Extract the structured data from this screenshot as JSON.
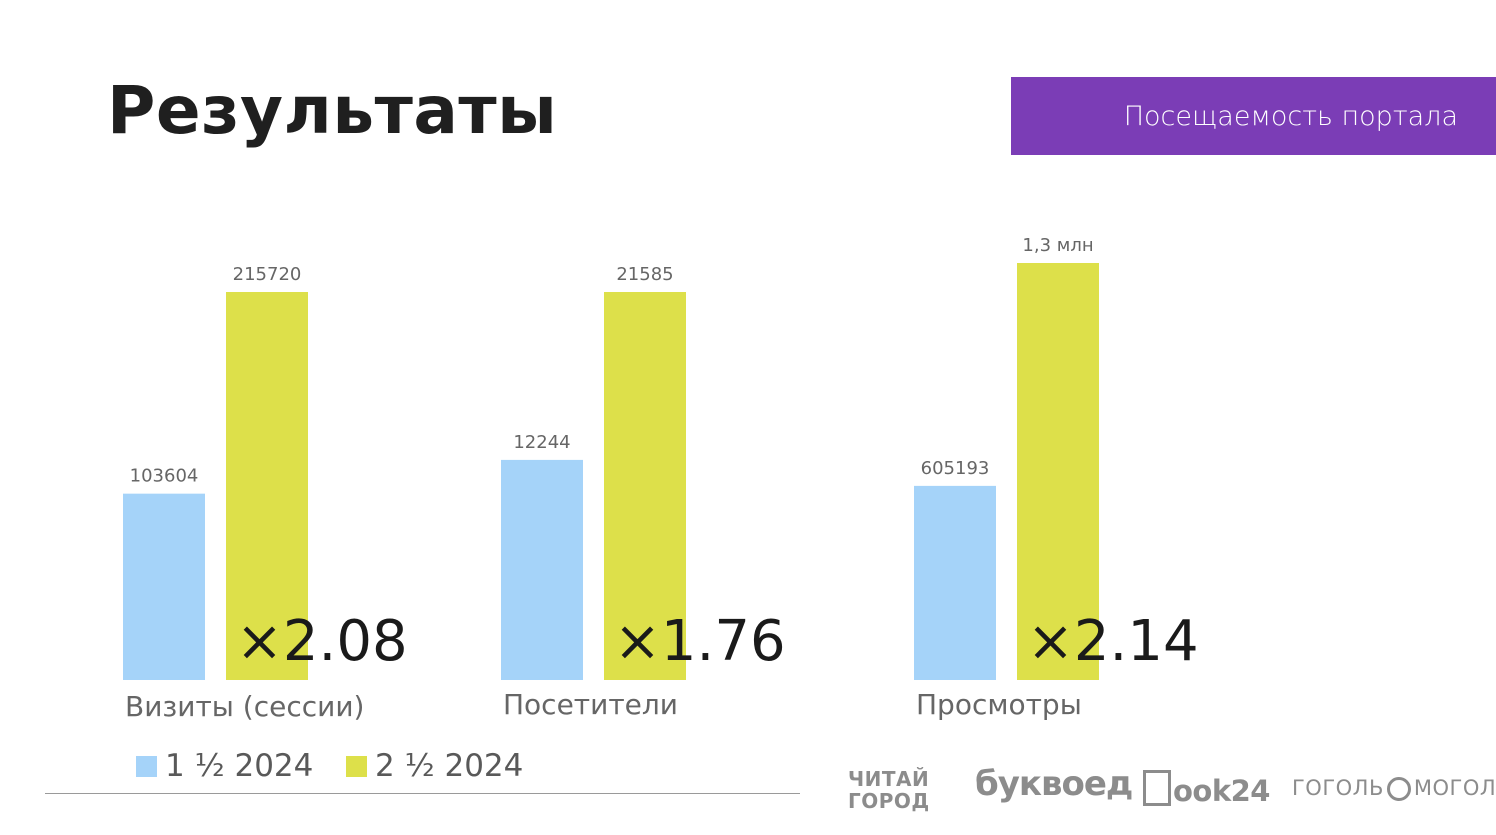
{
  "page": {
    "title": "Результаты",
    "tag": "Посещаемость портала",
    "accent_color": "#7b3db6"
  },
  "chart_data": {
    "type": "bar",
    "title": "Посещаемость портала",
    "categories": [
      "Визиты (сессии)",
      "Посетители",
      "Просмотры"
    ],
    "series": [
      {
        "name": "1 ½ 2024",
        "color": "#a5d3f9",
        "values": [
          103604,
          12244,
          605193
        ],
        "labels": [
          "103604",
          "12244",
          "605193"
        ]
      },
      {
        "name": "2 ½ 2024",
        "color": "#dde04a",
        "values": [
          215720,
          21585,
          1300000
        ],
        "labels": [
          "215720",
          "21585",
          "1,3 млн"
        ]
      }
    ],
    "growth": [
      "×2.08",
      "×1.76",
      "×2.14"
    ],
    "legend_position": "bottom-left",
    "grid": false
  },
  "logos": [
    {
      "name": "chitai-gorod-logo",
      "lines": [
        "ЧИТАЙ",
        "ГОРОД"
      ]
    },
    {
      "name": "bukvoed-logo",
      "text": "буквоед"
    },
    {
      "name": "book24-logo",
      "text": "ook24"
    },
    {
      "name": "gogol-mogol-logo",
      "left": "ГОГОЛЬ",
      "right": "МОГОЛЬ"
    }
  ]
}
